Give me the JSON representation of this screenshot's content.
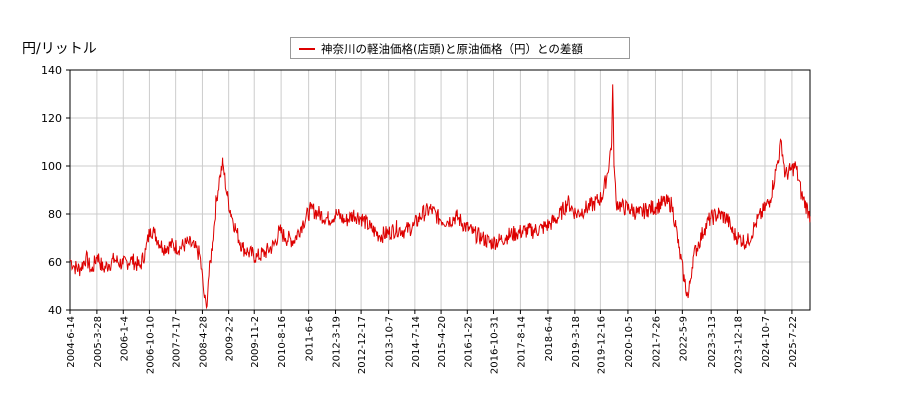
{
  "chart_data": {
    "type": "line",
    "ylabel": "円/リットル",
    "ylim": [
      40,
      140
    ],
    "yticks": [
      40,
      60,
      80,
      100,
      120,
      140
    ],
    "xlim": [
      "2004-06-14",
      "2026-01-31"
    ],
    "xticks": [
      "2004-6-14",
      "2005-3-28",
      "2006-1-4",
      "2006-10-10",
      "2007-7-17",
      "2008-4-28",
      "2009-2-2",
      "2009-11-2",
      "2010-8-16",
      "2011-6-6",
      "2012-3-19",
      "2012-12-17",
      "2013-10-7",
      "2014-7-14",
      "2015-4-20",
      "2016-1-25",
      "2016-10-31",
      "2017-8-14",
      "2018-6-4",
      "2019-3-18",
      "2019-12-16",
      "2020-10-5",
      "2021-7-26",
      "2022-5-9",
      "2023-3-13",
      "2023-12-18",
      "2024-10-7",
      "2025-7-22"
    ],
    "grid": true,
    "legend_position": "top",
    "series": [
      {
        "name": "神奈川の軽油価格(店頭)と原油価格（円）との差額",
        "color": "#dd0000",
        "points": [
          [
            "2004-06-14",
            61
          ],
          [
            "2004-08-01",
            58
          ],
          [
            "2004-10-01",
            57
          ],
          [
            "2004-12-01",
            62
          ],
          [
            "2005-02-01",
            56
          ],
          [
            "2005-04-01",
            63
          ],
          [
            "2005-06-01",
            57
          ],
          [
            "2005-08-01",
            59
          ],
          [
            "2005-10-01",
            61
          ],
          [
            "2006-01-01",
            59
          ],
          [
            "2006-04-01",
            61
          ],
          [
            "2006-07-01",
            58
          ],
          [
            "2006-09-01",
            65
          ],
          [
            "2006-10-20",
            74
          ],
          [
            "2006-12-01",
            72
          ],
          [
            "2007-03-01",
            66
          ],
          [
            "2007-06-01",
            67
          ],
          [
            "2007-09-01",
            66
          ],
          [
            "2007-12-01",
            68
          ],
          [
            "2008-02-01",
            66
          ],
          [
            "2008-04-01",
            63
          ],
          [
            "2008-05-20",
            45
          ],
          [
            "2008-06-10",
            41
          ],
          [
            "2008-07-01",
            52
          ],
          [
            "2008-08-15",
            68
          ],
          [
            "2008-09-20",
            85
          ],
          [
            "2008-11-01",
            96
          ],
          [
            "2008-12-01",
            101
          ],
          [
            "2009-01-15",
            88
          ],
          [
            "2009-03-01",
            80
          ],
          [
            "2009-05-01",
            72
          ],
          [
            "2009-07-01",
            66
          ],
          [
            "2009-09-01",
            64
          ],
          [
            "2009-12-01",
            62
          ],
          [
            "2010-03-01",
            64
          ],
          [
            "2010-06-01",
            67
          ],
          [
            "2010-08-01",
            73
          ],
          [
            "2010-10-01",
            70
          ],
          [
            "2011-01-01",
            69
          ],
          [
            "2011-04-01",
            76
          ],
          [
            "2011-07-01",
            82
          ],
          [
            "2011-10-01",
            80
          ],
          [
            "2012-01-01",
            78
          ],
          [
            "2012-04-01",
            80
          ],
          [
            "2012-07-01",
            77
          ],
          [
            "2012-10-01",
            80
          ],
          [
            "2013-01-01",
            78
          ],
          [
            "2013-04-01",
            74
          ],
          [
            "2013-07-01",
            71
          ],
          [
            "2013-10-01",
            72
          ],
          [
            "2014-01-01",
            74
          ],
          [
            "2014-04-01",
            73
          ],
          [
            "2014-07-01",
            75
          ],
          [
            "2014-10-01",
            80
          ],
          [
            "2015-01-01",
            82
          ],
          [
            "2015-04-01",
            78
          ],
          [
            "2015-07-01",
            77
          ],
          [
            "2015-10-01",
            79
          ],
          [
            "2016-01-01",
            75
          ],
          [
            "2016-04-01",
            72
          ],
          [
            "2016-07-01",
            70
          ],
          [
            "2016-10-01",
            68
          ],
          [
            "2017-01-01",
            69
          ],
          [
            "2017-04-01",
            71
          ],
          [
            "2017-07-01",
            72
          ],
          [
            "2017-10-01",
            73
          ],
          [
            "2018-01-01",
            73
          ],
          [
            "2018-04-01",
            74
          ],
          [
            "2018-07-01",
            76
          ],
          [
            "2018-10-01",
            79
          ],
          [
            "2019-01-01",
            85
          ],
          [
            "2019-04-01",
            80
          ],
          [
            "2019-07-01",
            82
          ],
          [
            "2019-10-01",
            84
          ],
          [
            "2020-01-01",
            87
          ],
          [
            "2020-03-01",
            97
          ],
          [
            "2020-04-15",
            110
          ],
          [
            "2020-04-25",
            134
          ],
          [
            "2020-05-10",
            100
          ],
          [
            "2020-06-01",
            85
          ],
          [
            "2020-08-01",
            83
          ],
          [
            "2020-11-01",
            82
          ],
          [
            "2021-02-01",
            80
          ],
          [
            "2021-05-01",
            82
          ],
          [
            "2021-08-01",
            83
          ],
          [
            "2021-11-01",
            85
          ],
          [
            "2022-01-15",
            84
          ],
          [
            "2022-03-01",
            75
          ],
          [
            "2022-04-01",
            66
          ],
          [
            "2022-06-01",
            52
          ],
          [
            "2022-07-10",
            45
          ],
          [
            "2022-09-01",
            62
          ],
          [
            "2022-11-01",
            68
          ],
          [
            "2023-01-01",
            74
          ],
          [
            "2023-03-01",
            78
          ],
          [
            "2023-06-01",
            80
          ],
          [
            "2023-09-01",
            78
          ],
          [
            "2023-11-01",
            72
          ],
          [
            "2024-01-01",
            70
          ],
          [
            "2024-04-01",
            68
          ],
          [
            "2024-07-01",
            76
          ],
          [
            "2024-10-01",
            82
          ],
          [
            "2024-12-01",
            86
          ],
          [
            "2025-02-01",
            98
          ],
          [
            "2025-04-01",
            110
          ],
          [
            "2025-05-10",
            96
          ],
          [
            "2025-07-01",
            98
          ],
          [
            "2025-09-01",
            100
          ],
          [
            "2025-11-01",
            88
          ],
          [
            "2026-01-15",
            81
          ],
          [
            "2026-01-31",
            79
          ]
        ]
      }
    ]
  }
}
